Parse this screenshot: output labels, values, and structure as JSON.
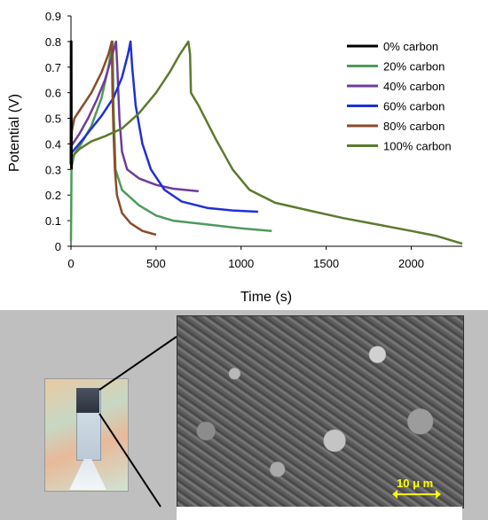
{
  "chart_data": {
    "type": "line",
    "xlabel": "Time (s)",
    "ylabel": "Potential (V)",
    "xlim": [
      0,
      2300
    ],
    "ylim": [
      0,
      0.9
    ],
    "x_ticks": [
      "0",
      "500",
      "1000",
      "1500",
      "2000"
    ],
    "x_tick_values": [
      0,
      500,
      1000,
      1500,
      2000
    ],
    "y_ticks": [
      "0",
      "0.1",
      "0.2",
      "0.3",
      "0.4",
      "0.5",
      "0.6",
      "0.7",
      "0.8",
      "0.9"
    ],
    "y_tick_values": [
      0,
      0.1,
      0.2,
      0.3,
      0.4,
      0.5,
      0.6,
      0.7,
      0.8,
      0.9
    ],
    "grid": false,
    "legend_position": "top-right",
    "series": [
      {
        "name": "0% carbon",
        "color": "#000000",
        "points": [
          [
            0,
            0.32
          ],
          [
            0.5,
            0.55
          ],
          [
            1,
            0.8
          ],
          [
            1.5,
            0.6
          ],
          [
            2,
            0.38
          ],
          [
            3,
            0.3
          ]
        ]
      },
      {
        "name": "20% carbon",
        "color": "#4e9a5a",
        "points": [
          [
            0,
            0.02
          ],
          [
            3,
            0.31
          ],
          [
            20,
            0.36
          ],
          [
            60,
            0.4
          ],
          [
            120,
            0.47
          ],
          [
            180,
            0.58
          ],
          [
            220,
            0.7
          ],
          [
            245,
            0.8
          ],
          [
            250,
            0.55
          ],
          [
            262,
            0.3
          ],
          [
            300,
            0.22
          ],
          [
            400,
            0.16
          ],
          [
            500,
            0.12
          ],
          [
            600,
            0.1
          ],
          [
            800,
            0.085
          ],
          [
            1000,
            0.07
          ],
          [
            1180,
            0.06
          ]
        ]
      },
      {
        "name": "40% carbon",
        "color": "#6f3c9a",
        "points": [
          [
            0,
            0.39
          ],
          [
            10,
            0.4
          ],
          [
            50,
            0.44
          ],
          [
            100,
            0.5
          ],
          [
            150,
            0.57
          ],
          [
            200,
            0.65
          ],
          [
            240,
            0.74
          ],
          [
            265,
            0.8
          ],
          [
            272,
            0.7
          ],
          [
            285,
            0.5
          ],
          [
            300,
            0.37
          ],
          [
            330,
            0.3
          ],
          [
            400,
            0.265
          ],
          [
            500,
            0.24
          ],
          [
            600,
            0.225
          ],
          [
            750,
            0.215
          ]
        ]
      },
      {
        "name": "60% carbon",
        "color": "#1f2fd6",
        "points": [
          [
            0,
            0.36
          ],
          [
            10,
            0.37
          ],
          [
            60,
            0.41
          ],
          [
            120,
            0.46
          ],
          [
            180,
            0.51
          ],
          [
            250,
            0.58
          ],
          [
            300,
            0.66
          ],
          [
            335,
            0.75
          ],
          [
            350,
            0.8
          ],
          [
            360,
            0.7
          ],
          [
            380,
            0.55
          ],
          [
            420,
            0.4
          ],
          [
            470,
            0.3
          ],
          [
            550,
            0.22
          ],
          [
            650,
            0.175
          ],
          [
            800,
            0.15
          ],
          [
            950,
            0.14
          ],
          [
            1100,
            0.135
          ]
        ]
      },
      {
        "name": "80% carbon",
        "color": "#8b4a2a",
        "points": [
          [
            0,
            0.33
          ],
          [
            5,
            0.45
          ],
          [
            20,
            0.5
          ],
          [
            60,
            0.54
          ],
          [
            120,
            0.6
          ],
          [
            180,
            0.68
          ],
          [
            220,
            0.75
          ],
          [
            240,
            0.8
          ],
          [
            244,
            0.6
          ],
          [
            250,
            0.45
          ],
          [
            258,
            0.3
          ],
          [
            270,
            0.2
          ],
          [
            300,
            0.13
          ],
          [
            350,
            0.09
          ],
          [
            420,
            0.06
          ],
          [
            500,
            0.045
          ]
        ]
      },
      {
        "name": "100% carbon",
        "color": "#5c7a2e",
        "points": [
          [
            0,
            0.3
          ],
          [
            5,
            0.35
          ],
          [
            50,
            0.38
          ],
          [
            120,
            0.41
          ],
          [
            200,
            0.43
          ],
          [
            300,
            0.46
          ],
          [
            400,
            0.52
          ],
          [
            500,
            0.6
          ],
          [
            580,
            0.68
          ],
          [
            640,
            0.75
          ],
          [
            690,
            0.8
          ],
          [
            700,
            0.75
          ],
          [
            705,
            0.6
          ],
          [
            750,
            0.55
          ],
          [
            850,
            0.42
          ],
          [
            950,
            0.3
          ],
          [
            1050,
            0.22
          ],
          [
            1200,
            0.17
          ],
          [
            1400,
            0.14
          ],
          [
            1600,
            0.11
          ],
          [
            1800,
            0.085
          ],
          [
            2000,
            0.06
          ],
          [
            2150,
            0.04
          ],
          [
            2300,
            0.01
          ]
        ]
      }
    ]
  },
  "sem": {
    "scale_label": "10 μ m"
  },
  "colors": {
    "panel_background": "#bfbfbf",
    "scale_bar": "#ffff00"
  }
}
